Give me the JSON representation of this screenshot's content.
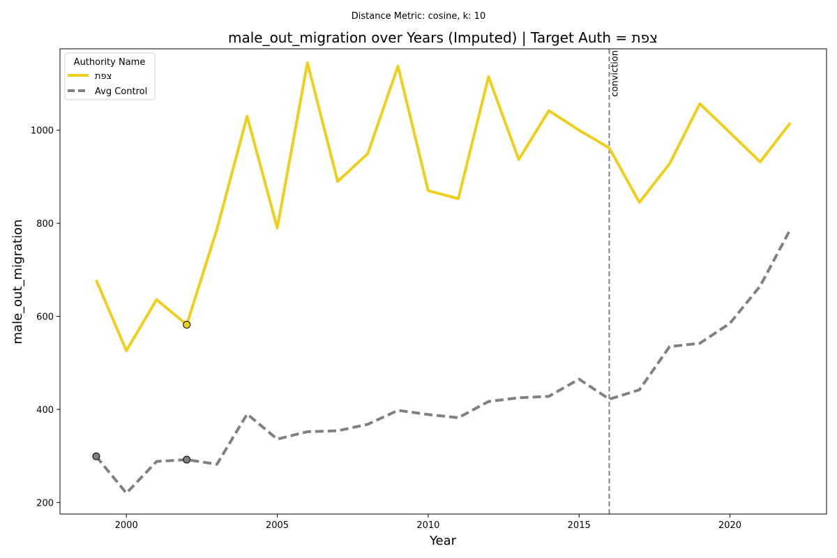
{
  "suptitle": "Distance Metric: cosine, k: 10",
  "chart_data": {
    "type": "line",
    "title": "male_out_migration over Years (Imputed) | Target Auth = צפת",
    "xlabel": "Year",
    "ylabel": "male_out_migration",
    "xlim": [
      1997.8,
      2023.2
    ],
    "ylim": [
      175,
      1175
    ],
    "xticks": [
      2000,
      2005,
      2010,
      2015,
      2020
    ],
    "yticks": [
      200,
      400,
      600,
      800,
      1000
    ],
    "x": [
      1999,
      2000,
      2001,
      2002,
      2003,
      2004,
      2005,
      2006,
      2007,
      2008,
      2009,
      2010,
      2011,
      2012,
      2013,
      2014,
      2015,
      2016,
      2017,
      2018,
      2019,
      2020,
      2021,
      2022
    ],
    "series": [
      {
        "name": "צפת",
        "color": "#f0cf1c",
        "style": "solid",
        "values": [
          678,
          526,
          636,
          582,
          787,
          1030,
          790,
          1145,
          890,
          950,
          1138,
          870,
          853,
          1115,
          937,
          1042,
          1000,
          962,
          845,
          928,
          1057,
          995,
          932,
          1016
        ],
        "imputed_markers": [
          {
            "x": 2002,
            "y": 582
          }
        ]
      },
      {
        "name": "Avg Control",
        "color": "#808080",
        "style": "dashed",
        "values": [
          299,
          220,
          288,
          292,
          282,
          390,
          336,
          352,
          354,
          368,
          398,
          389,
          382,
          417,
          425,
          428,
          465,
          422,
          442,
          535,
          542,
          585,
          665,
          787
        ],
        "imputed_markers": [
          {
            "x": 1999,
            "y": 299
          },
          {
            "x": 2002,
            "y": 292
          }
        ]
      }
    ],
    "vline": {
      "x": 2016,
      "label": "conviction",
      "color": "#808080"
    },
    "legend": {
      "title": "Authority Name",
      "placement": "upper-left"
    },
    "grid": false
  }
}
